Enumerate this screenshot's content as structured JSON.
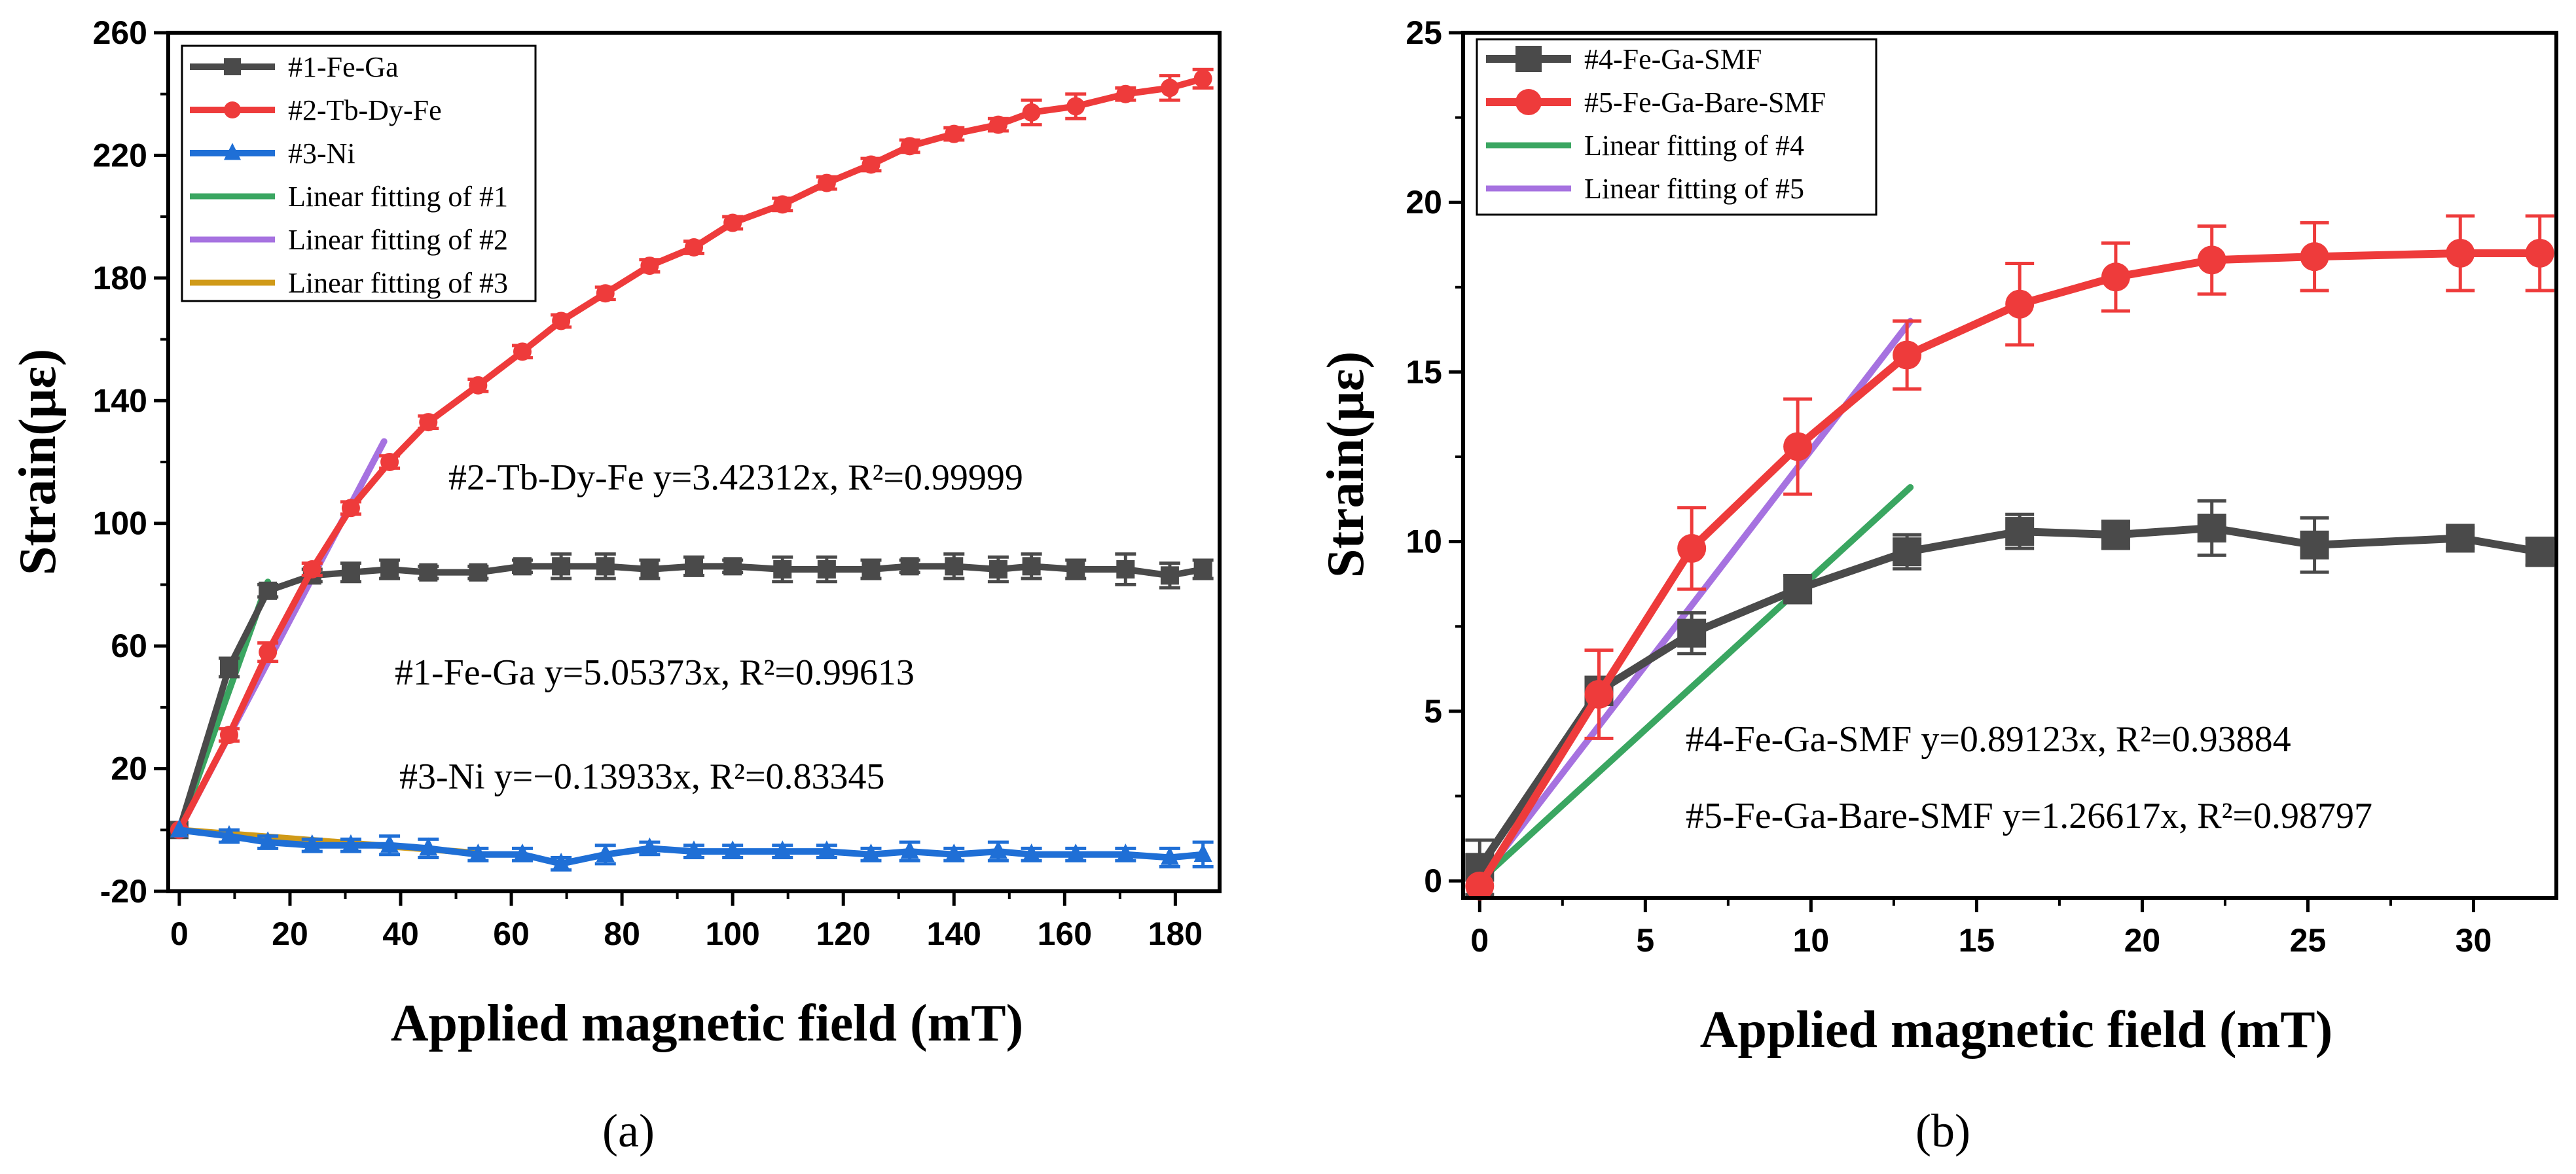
{
  "chart_data": [
    {
      "type": "line",
      "panel": "(a)",
      "xlabel": "Applied magnetic field (mT)",
      "ylabel": "Strain(με)",
      "xlim": [
        -2,
        188
      ],
      "ylim": [
        -20,
        260
      ],
      "xticks": [
        0,
        20,
        40,
        60,
        80,
        100,
        120,
        140,
        160,
        180
      ],
      "yticks": [
        -20,
        20,
        60,
        100,
        140,
        180,
        220,
        260
      ],
      "series": [
        {
          "name": "#1-Fe-Ga",
          "color": "#4a4a4a",
          "marker": "square",
          "x": [
            0,
            9,
            16,
            24,
            31,
            38,
            45,
            54,
            62,
            69,
            77,
            85,
            93,
            100,
            109,
            117,
            125,
            132,
            140,
            148,
            154,
            162,
            171,
            179,
            185
          ],
          "y": [
            0,
            53,
            78,
            83,
            84,
            85,
            84,
            84,
            86,
            86,
            86,
            85,
            86,
            86,
            85,
            85,
            85,
            86,
            86,
            85,
            86,
            85,
            85,
            83,
            85
          ],
          "err": [
            0,
            3,
            2,
            2,
            3,
            3,
            2,
            2,
            2,
            4,
            4,
            3,
            3,
            2,
            4,
            4,
            3,
            2,
            4,
            4,
            4,
            3,
            5,
            4,
            3
          ]
        },
        {
          "name": "#2-Tb-Dy-Fe",
          "color": "#ee3b3b",
          "marker": "circle",
          "x": [
            0,
            9,
            16,
            24,
            31,
            38,
            45,
            54,
            62,
            69,
            77,
            85,
            93,
            100,
            109,
            117,
            125,
            132,
            140,
            148,
            154,
            162,
            171,
            179,
            185
          ],
          "y": [
            0,
            31,
            58,
            85,
            105,
            120,
            133,
            145,
            156,
            166,
            175,
            184,
            190,
            198,
            204,
            211,
            217,
            223,
            227,
            230,
            234,
            236,
            240,
            242,
            245
          ],
          "err": [
            0,
            2,
            3,
            2,
            2,
            2,
            2,
            2,
            2,
            2,
            2,
            2,
            2,
            2,
            2,
            2,
            2,
            2,
            2,
            2,
            4,
            4,
            2,
            4,
            3
          ]
        },
        {
          "name": "#3-Ni",
          "color": "#1f6fd6",
          "marker": "triangle",
          "x": [
            0,
            9,
            16,
            24,
            31,
            38,
            45,
            54,
            62,
            69,
            77,
            85,
            93,
            100,
            109,
            117,
            125,
            132,
            140,
            148,
            154,
            162,
            171,
            179,
            185
          ],
          "y": [
            0,
            -2,
            -4,
            -5,
            -5,
            -5,
            -6,
            -8,
            -8,
            -11,
            -8,
            -6,
            -7,
            -7,
            -7,
            -7,
            -8,
            -7,
            -8,
            -7,
            -8,
            -8,
            -8,
            -9,
            -8
          ],
          "err": [
            0,
            2,
            2,
            2,
            2,
            3,
            3,
            2,
            2,
            2,
            3,
            2,
            2,
            2,
            2,
            2,
            2,
            3,
            2,
            3,
            2,
            2,
            2,
            3,
            4
          ]
        },
        {
          "name": "Linear fitting of #1",
          "color": "#3aa661",
          "fit": true,
          "x": [
            0,
            16
          ],
          "y": [
            0,
            80.9
          ]
        },
        {
          "name": "Linear fitting of #2",
          "color": "#a672e0",
          "fit": true,
          "x": [
            0,
            37
          ],
          "y": [
            0,
            126.7
          ]
        },
        {
          "name": "Linear fitting of #3",
          "color": "#d09a18",
          "fit": true,
          "x": [
            0,
            53
          ],
          "y": [
            0,
            -7.4
          ]
        }
      ],
      "annotations": [
        "#2-Tb-Dy-Fe y=3.42312x, R²=0.99999",
        "#1-Fe-Ga y=5.05373x, R²=0.99613",
        "#3-Ni y=−0.13933x, R²=0.83345"
      ]
    },
    {
      "type": "line",
      "panel": "(b)",
      "xlabel": "Applied magnetic field (mT)",
      "ylabel": "Strain(με)",
      "xlim": [
        -0.5,
        32.5
      ],
      "ylim": [
        -0.5,
        25
      ],
      "xticks": [
        0,
        5,
        10,
        15,
        20,
        25,
        30
      ],
      "yticks": [
        0,
        5,
        10,
        15,
        20,
        25
      ],
      "series": [
        {
          "name": "#4-Fe-Ga-SMF",
          "color": "#4a4a4a",
          "marker": "square",
          "x": [
            0,
            3.6,
            6.4,
            9.6,
            12.9,
            16.3,
            19.2,
            22.1,
            25.2,
            29.6,
            32.0
          ],
          "y": [
            0.4,
            5.6,
            7.3,
            8.6,
            9.7,
            10.3,
            10.2,
            10.4,
            9.9,
            10.1,
            9.7
          ],
          "err": [
            0.8,
            0.4,
            0.6,
            0.4,
            0.5,
            0.5,
            0.4,
            0.8,
            0.8,
            0.3,
            0.4
          ]
        },
        {
          "name": "#5-Fe-Ga-Bare-SMF",
          "color": "#ee3b3b",
          "marker": "circle",
          "x": [
            0,
            3.6,
            6.4,
            9.6,
            12.9,
            16.3,
            19.2,
            22.1,
            25.2,
            29.6,
            32.0
          ],
          "y": [
            -0.15,
            5.5,
            9.8,
            12.8,
            15.5,
            17.0,
            17.8,
            18.3,
            18.4,
            18.5,
            18.5
          ],
          "err": [
            0,
            1.3,
            1.2,
            1.4,
            1.0,
            1.2,
            1.0,
            1.0,
            1.0,
            1.1,
            1.1
          ]
        },
        {
          "name": "Linear fitting of #4",
          "color": "#3aa661",
          "fit": true,
          "x": [
            0,
            13
          ],
          "y": [
            0,
            11.6
          ]
        },
        {
          "name": "Linear fitting of #5",
          "color": "#a672e0",
          "fit": true,
          "x": [
            0,
            13
          ],
          "y": [
            0,
            16.5
          ]
        }
      ],
      "annotations": [
        "#4-Fe-Ga-SMF y=0.89123x, R²=0.93884",
        "#5-Fe-Ga-Bare-SMF y=1.26617x, R²=0.98797"
      ]
    }
  ]
}
